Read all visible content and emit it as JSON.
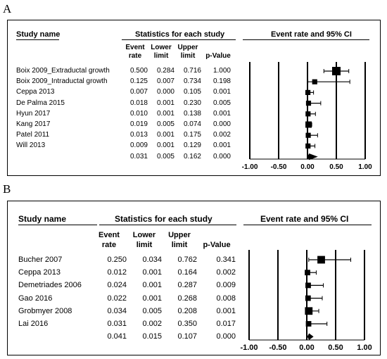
{
  "chart_data": [
    {
      "type": "forest",
      "panel": "A",
      "headers": {
        "study": "Study name",
        "stats": "Statistics for each study",
        "plot": "Event rate and 95% CI",
        "event_rate": [
          "Event",
          "rate"
        ],
        "lower": [
          "Lower",
          "limit"
        ],
        "upper": [
          "Upper",
          "limit"
        ],
        "pvalue": "p-Value"
      },
      "rows": [
        {
          "study": "Boix 2009_Extraductal growth",
          "event_rate": "0.500",
          "lower": "0.284",
          "upper": "0.716",
          "p": "1.000",
          "rate": 0.5,
          "ci": [
            0.284,
            0.716
          ],
          "weight": 1.0
        },
        {
          "study": "Boix 2009_Intraductal growth",
          "event_rate": "0.125",
          "lower": "0.007",
          "upper": "0.734",
          "p": "0.198",
          "rate": 0.125,
          "ci": [
            0.007,
            0.734
          ],
          "weight": 0.6
        },
        {
          "study": "Ceppa 2013",
          "event_rate": "0.007",
          "lower": "0.000",
          "upper": "0.105",
          "p": "0.001",
          "rate": 0.007,
          "ci": [
            0.0,
            0.105
          ],
          "weight": 0.6
        },
        {
          "study": "De Palma 2015",
          "event_rate": "0.018",
          "lower": "0.001",
          "upper": "0.230",
          "p": "0.005",
          "rate": 0.018,
          "ci": [
            0.001,
            0.23
          ],
          "weight": 0.6
        },
        {
          "study": "Hyun 2017",
          "event_rate": "0.010",
          "lower": "0.001",
          "upper": "0.138",
          "p": "0.001",
          "rate": 0.01,
          "ci": [
            0.001,
            0.138
          ],
          "weight": 0.6
        },
        {
          "study": "Kang 2017",
          "event_rate": "0.019",
          "lower": "0.005",
          "upper": "0.074",
          "p": "0.000",
          "rate": 0.019,
          "ci": [
            0.005,
            0.074
          ],
          "weight": 0.75
        },
        {
          "study": "Patel 2011",
          "event_rate": "0.013",
          "lower": "0.001",
          "upper": "0.175",
          "p": "0.002",
          "rate": 0.013,
          "ci": [
            0.001,
            0.175
          ],
          "weight": 0.6
        },
        {
          "study": "Will 2013",
          "event_rate": "0.009",
          "lower": "0.001",
          "upper": "0.129",
          "p": "0.001",
          "rate": 0.009,
          "ci": [
            0.001,
            0.129
          ],
          "weight": 0.6
        }
      ],
      "summary": {
        "event_rate": "0.031",
        "lower": "0.005",
        "upper": "0.162",
        "p": "0.000",
        "rate": 0.031,
        "ci": [
          0.005,
          0.162
        ]
      },
      "xlim": [
        -1.0,
        1.0
      ],
      "ticks": [
        -1.0,
        -0.5,
        0.0,
        0.5,
        1.0
      ],
      "tick_labels": [
        "-1.00",
        "-0.50",
        "0.00",
        "0.50",
        "1.00"
      ]
    },
    {
      "type": "forest",
      "panel": "B",
      "headers": {
        "study": "Study name",
        "stats": "Statistics for each study",
        "plot": "Event rate and 95% CI",
        "event_rate": [
          "Event",
          "rate"
        ],
        "lower": [
          "Lower",
          "limit"
        ],
        "upper": [
          "Upper",
          "limit"
        ],
        "pvalue": "p-Value"
      },
      "rows": [
        {
          "study": "Bucher 2007",
          "event_rate": "0.250",
          "lower": "0.034",
          "upper": "0.762",
          "p": "0.341",
          "rate": 0.25,
          "ci": [
            0.034,
            0.762
          ],
          "weight": 0.9
        },
        {
          "study": "Ceppa 2013",
          "event_rate": "0.012",
          "lower": "0.001",
          "upper": "0.164",
          "p": "0.002",
          "rate": 0.012,
          "ci": [
            0.001,
            0.164
          ],
          "weight": 0.65
        },
        {
          "study": "Demetriades 2006",
          "event_rate": "0.024",
          "lower": "0.001",
          "upper": "0.287",
          "p": "0.009",
          "rate": 0.024,
          "ci": [
            0.001,
            0.287
          ],
          "weight": 0.65
        },
        {
          "study": "Gao 2016",
          "event_rate": "0.022",
          "lower": "0.001",
          "upper": "0.268",
          "p": "0.008",
          "rate": 0.022,
          "ci": [
            0.001,
            0.268
          ],
          "weight": 0.65
        },
        {
          "study": "Grobmyer 2008",
          "event_rate": "0.034",
          "lower": "0.005",
          "upper": "0.208",
          "p": "0.001",
          "rate": 0.034,
          "ci": [
            0.005,
            0.208
          ],
          "weight": 0.9
        },
        {
          "study": "Lai 2016",
          "event_rate": "0.031",
          "lower": "0.002",
          "upper": "0.350",
          "p": "0.017",
          "rate": 0.031,
          "ci": [
            0.002,
            0.35
          ],
          "weight": 0.65
        }
      ],
      "summary": {
        "event_rate": "0.041",
        "lower": "0.015",
        "upper": "0.107",
        "p": "0.000",
        "rate": 0.041,
        "ci": [
          0.015,
          0.107
        ]
      },
      "xlim": [
        -1.0,
        1.0
      ],
      "ticks": [
        -1.0,
        -0.5,
        0.0,
        0.5,
        1.0
      ],
      "tick_labels": [
        "-1.00",
        "-0.50",
        "0.00",
        "0.50",
        "1.00"
      ]
    }
  ],
  "panel_labels": [
    "A",
    "B"
  ]
}
